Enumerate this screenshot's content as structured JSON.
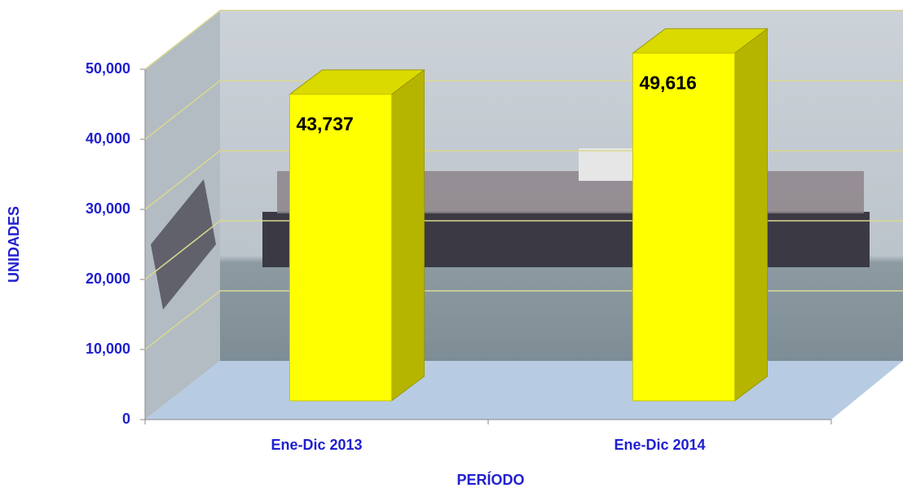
{
  "chart_data": {
    "type": "bar3d",
    "categories": [
      "Ene-Dic 2013",
      "Ene-Dic 2014"
    ],
    "values": [
      43737,
      49616
    ],
    "value_labels": [
      "43,737",
      "49,616"
    ],
    "color": "#ffff00",
    "x_label": "PERÍODO",
    "y_label": "UNIDADES",
    "ylim": [
      0,
      50000
    ],
    "yticks": [
      0,
      {
        "value": 10000,
        "label": "10,000"
      },
      {
        "value": 20000,
        "label": "20,000"
      },
      {
        "value": 30000,
        "label": "30,000"
      },
      {
        "value": 40000,
        "label": "40,000"
      },
      {
        "value": 50000,
        "label": "50,000"
      }
    ],
    "grid": true
  }
}
